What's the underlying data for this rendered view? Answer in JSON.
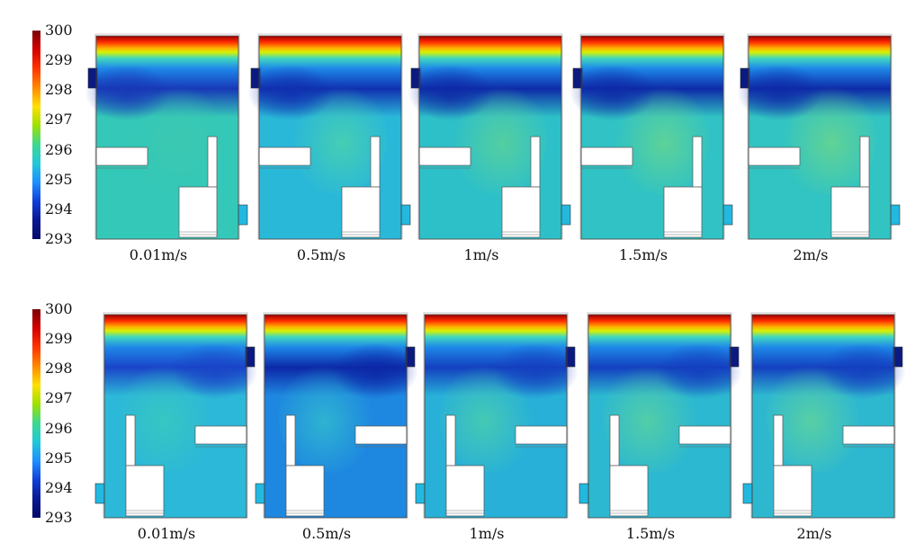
{
  "colorbar": {
    "ticks": [
      "300",
      "299",
      "298",
      "297",
      "296",
      "295",
      "294",
      "293"
    ],
    "gradient_colors": [
      "#7a0000",
      "#d40000",
      "#ff3300",
      "#ff8800",
      "#ffe000",
      "#9ee000",
      "#3cd890",
      "#22c8d8",
      "#1e90ff",
      "#1040d8",
      "#0a1890",
      "#050a6a"
    ]
  },
  "rows": [
    {
      "inlet_side": "left-top",
      "outlet_side": "right-bottom",
      "panels": [
        {
          "caption": "0.01m/s",
          "mid": "#34c8b8",
          "warm": "#3cc8b0",
          "cold": "#1838b8"
        },
        {
          "caption": "0.5m/s",
          "mid": "#2ab8d8",
          "warm": "#48d0b0",
          "cold": "#1030b0"
        },
        {
          "caption": "1m/s",
          "mid": "#2ec0c8",
          "warm": "#58d09c",
          "cold": "#0e2aa8"
        },
        {
          "caption": "1.5m/s",
          "mid": "#30c2c4",
          "warm": "#62d494",
          "cold": "#0e2aa8"
        },
        {
          "caption": "2m/s",
          "mid": "#32c4c2",
          "warm": "#66d490",
          "cold": "#0e2aa8"
        }
      ]
    },
    {
      "inlet_side": "right-top",
      "outlet_side": "left-bottom",
      "panels": [
        {
          "caption": "0.01m/s",
          "mid": "#2cb8d8",
          "warm": "#38c8c0",
          "cold": "#1a44c8"
        },
        {
          "caption": "0.5m/s",
          "mid": "#1e88e0",
          "warm": "#30b8d0",
          "cold": "#0c28a8"
        },
        {
          "caption": "1m/s",
          "mid": "#28b0d8",
          "warm": "#48ccb0",
          "cold": "#1440c0"
        },
        {
          "caption": "1.5m/s",
          "mid": "#2cb8d0",
          "warm": "#56d0a4",
          "cold": "#1440c0"
        },
        {
          "caption": "2m/s",
          "mid": "#2eb8d0",
          "warm": "#5cd2a0",
          "cold": "#1440c0"
        }
      ]
    }
  ]
}
